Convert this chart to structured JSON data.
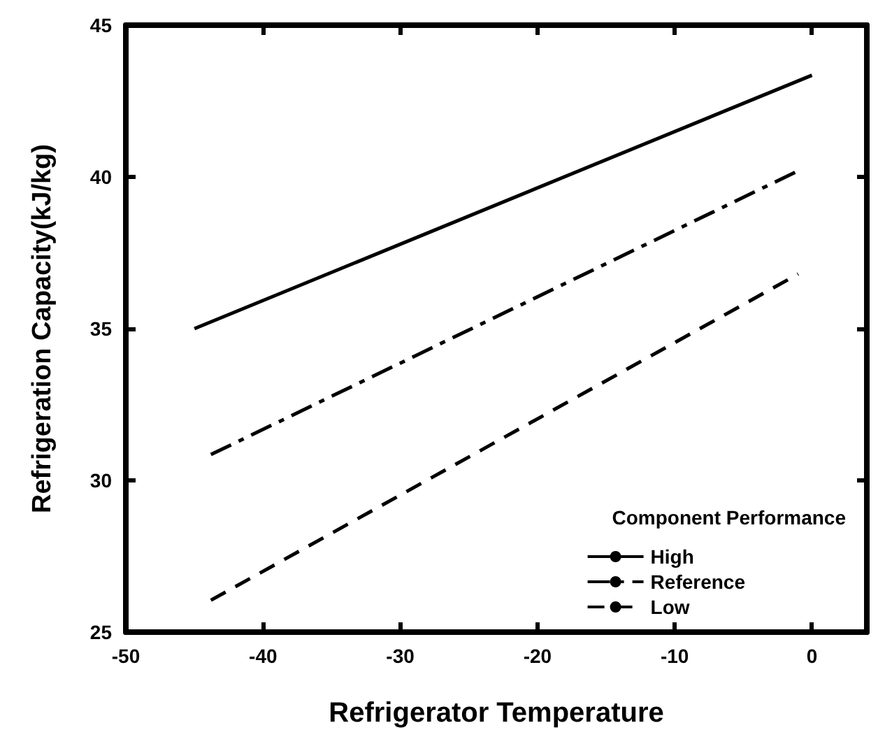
{
  "chart_data": {
    "type": "line",
    "xlabel": "Refrigerator Temperature",
    "ylabel": "Refrigeration Capacity(kJ/kg)",
    "legend_title": "Component Performance",
    "legend": "bottom right",
    "grid": false,
    "marker": "none",
    "xlim": [
      -50,
      4
    ],
    "xticks": [
      -50,
      -40,
      -30,
      -20,
      -10,
      0
    ],
    "ylim": [
      25,
      45
    ],
    "yticks": [
      25,
      30,
      35,
      40,
      45
    ],
    "series": [
      {
        "name": "High",
        "color": "#000000",
        "line_style": "solid",
        "x": [
          -45,
          0
        ],
        "values": [
          35,
          43.35
        ]
      },
      {
        "name": "Reference",
        "color": "#000000",
        "line_style": "dashdot",
        "x": [
          -43.8,
          -1
        ],
        "values": [
          30.85,
          40.2
        ]
      },
      {
        "name": "Low",
        "color": "#000000",
        "line_style": "dashed",
        "x": [
          -43.8,
          -1
        ],
        "values": [
          26.05,
          36.8
        ]
      }
    ]
  }
}
